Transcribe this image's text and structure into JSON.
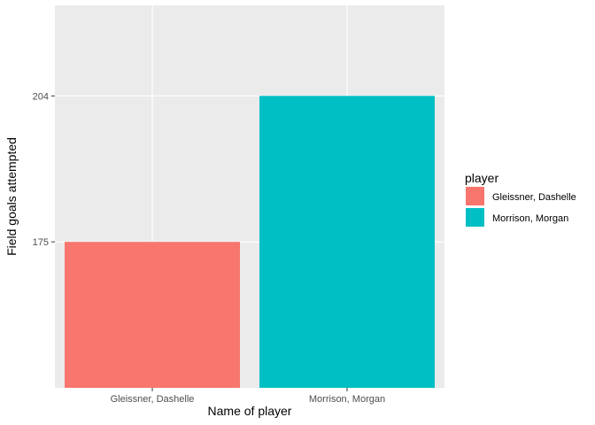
{
  "chart_data": {
    "type": "bar",
    "categories": [
      "Gleissner, Dashelle",
      "Morrison, Morgan"
    ],
    "values": [
      175,
      204
    ],
    "colors": [
      "#F8766D",
      "#00BFC4"
    ],
    "xlabel": "Name of player",
    "ylabel": "Field goals attempted",
    "y_ticks": [
      175,
      204
    ],
    "y_tick_labels": [
      "175",
      "204"
    ],
    "ylim": [
      146,
      222
    ],
    "grid": true,
    "panel_background": "#EBEBEB",
    "grid_color": "#FFFFFF",
    "legend": {
      "title": "player",
      "position": "right",
      "entries": [
        {
          "label": "Gleissner, Dashelle",
          "color": "#F8766D"
        },
        {
          "label": "Morrison, Morgan",
          "color": "#00BFC4"
        }
      ]
    }
  }
}
